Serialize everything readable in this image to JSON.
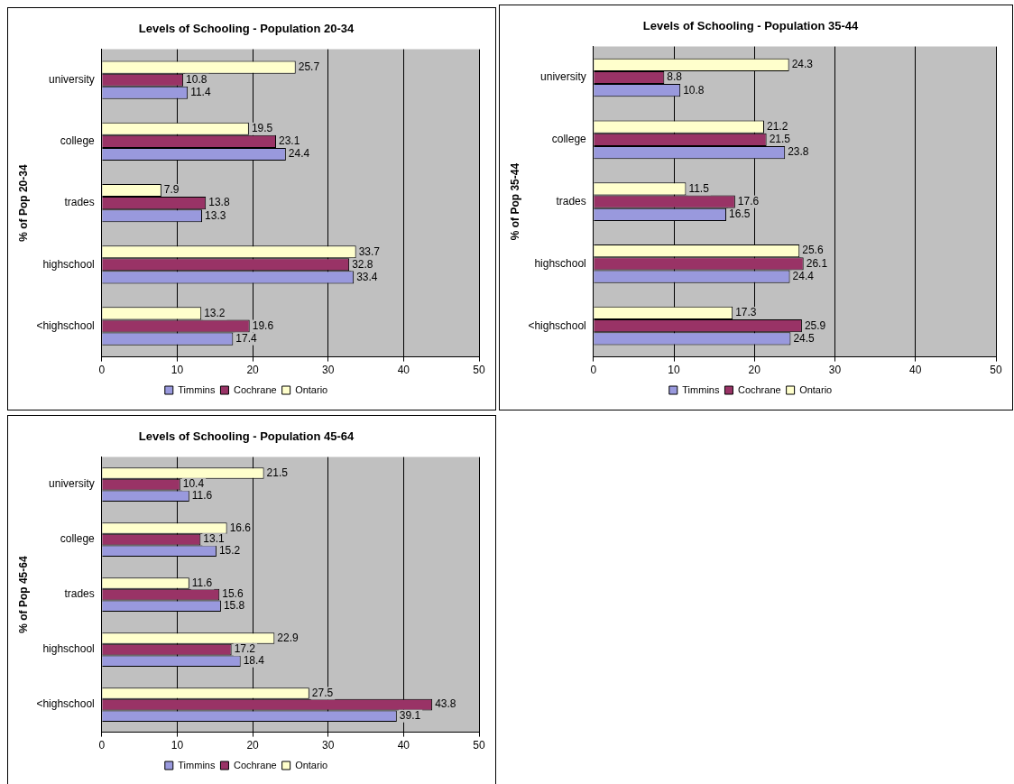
{
  "chart_data": [
    {
      "type": "bar",
      "orientation": "horizontal",
      "title": "Levels of Schooling - Population 20-34",
      "ylabel": "% of Pop 20-34",
      "categories": [
        "university",
        "college",
        "trades",
        "highschool",
        "<highschool"
      ],
      "series": [
        {
          "name": "Timmins",
          "color": "#9999dd",
          "values": [
            11.4,
            24.4,
            13.3,
            33.4,
            17.4
          ]
        },
        {
          "name": "Cochrane",
          "color": "#993366",
          "values": [
            10.8,
            23.1,
            13.8,
            32.8,
            19.6
          ]
        },
        {
          "name": "Ontario",
          "color": "#ffffcc",
          "values": [
            25.7,
            19.5,
            7.9,
            33.7,
            13.2
          ]
        }
      ],
      "xlim": [
        0,
        50
      ],
      "xticks": [
        0,
        10,
        20,
        30,
        40,
        50
      ],
      "grid": "x",
      "legend": "bottom",
      "data_labels": true
    },
    {
      "type": "bar",
      "orientation": "horizontal",
      "title": "Levels of Schooling - Population 35-44",
      "ylabel": "% of Pop 35-44",
      "categories": [
        "university",
        "college",
        "trades",
        "highschool",
        "<highschool"
      ],
      "series": [
        {
          "name": "Timmins",
          "color": "#9999dd",
          "values": [
            10.8,
            23.8,
            16.5,
            24.4,
            24.5
          ]
        },
        {
          "name": "Cochrane",
          "color": "#993366",
          "values": [
            8.8,
            21.5,
            17.6,
            26.1,
            25.9
          ]
        },
        {
          "name": "Ontario",
          "color": "#ffffcc",
          "values": [
            24.3,
            21.2,
            11.5,
            25.6,
            17.3
          ]
        }
      ],
      "xlim": [
        0,
        50
      ],
      "xticks": [
        0,
        10,
        20,
        30,
        40,
        50
      ],
      "grid": "x",
      "legend": "bottom",
      "data_labels": true
    },
    {
      "type": "bar",
      "orientation": "horizontal",
      "title": "Levels of Schooling - Population 45-64",
      "ylabel": "% of Pop 45-64",
      "categories": [
        "university",
        "college",
        "trades",
        "highschool",
        "<highschool"
      ],
      "series": [
        {
          "name": "Timmins",
          "color": "#9999dd",
          "values": [
            11.6,
            15.2,
            15.8,
            18.4,
            39.1
          ]
        },
        {
          "name": "Cochrane",
          "color": "#993366",
          "values": [
            10.4,
            13.1,
            15.6,
            17.2,
            43.8
          ]
        },
        {
          "name": "Ontario",
          "color": "#ffffcc",
          "values": [
            21.5,
            16.6,
            11.6,
            22.9,
            27.5
          ]
        }
      ],
      "xlim": [
        0,
        50
      ],
      "xticks": [
        0,
        10,
        20,
        30,
        40,
        50
      ],
      "grid": "x",
      "legend": "bottom",
      "data_labels": true
    }
  ]
}
